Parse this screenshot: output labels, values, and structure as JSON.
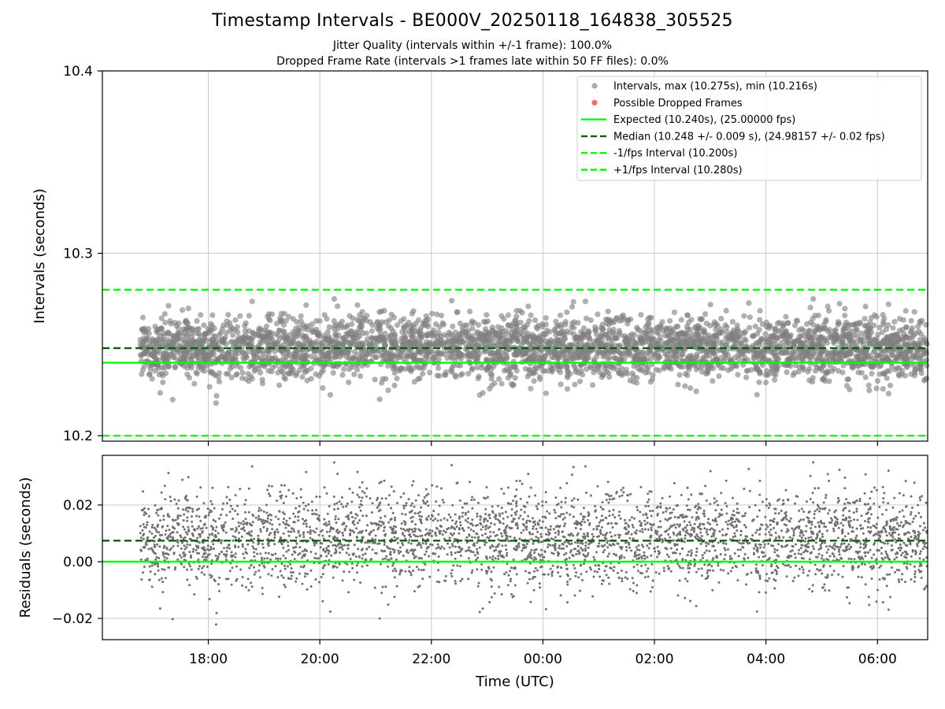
{
  "chart_data": {
    "type": "scatter",
    "title": "Timestamp Intervals - BE000V_20250118_164838_305525",
    "subtitle_line1": "Jitter Quality (intervals within +/-1 frame): 100.0%",
    "subtitle_line2": "Dropped Frame Rate (intervals >1 frames late within 50 FF files): 0.0%",
    "xlabel": "Time (UTC)",
    "x_range_hours": [
      16.1,
      30.9
    ],
    "data_x_range_hours": [
      16.78,
      30.9
    ],
    "x_ticks": [
      {
        "value": 18,
        "label": "18:00"
      },
      {
        "value": 20,
        "label": "20:00"
      },
      {
        "value": 22,
        "label": "22:00"
      },
      {
        "value": 24,
        "label": "00:00"
      },
      {
        "value": 26,
        "label": "02:00"
      },
      {
        "value": 28,
        "label": "04:00"
      },
      {
        "value": 30,
        "label": "06:00"
      }
    ],
    "grid": true,
    "legend_placement": "upper right",
    "top_panel": {
      "ylabel": "Intervals (seconds)",
      "ylim": [
        10.197,
        10.4
      ],
      "y_ticks": [
        {
          "value": 10.2,
          "label": "10.2"
        },
        {
          "value": 10.3,
          "label": "10.3"
        },
        {
          "value": 10.4,
          "label": "10.4"
        }
      ],
      "intervals": {
        "max": 10.275,
        "min": 10.216,
        "mean": 10.248,
        "std": 0.009
      },
      "lines": [
        {
          "name": "expected",
          "value": 10.24,
          "color": "#00ff00",
          "style": "solid"
        },
        {
          "name": "median",
          "value": 10.248,
          "color": "#006400",
          "style": "dashed"
        },
        {
          "name": "minus_1_fps",
          "value": 10.2,
          "color": "#00ff00",
          "style": "dashed"
        },
        {
          "name": "plus_1_fps",
          "value": 10.28,
          "color": "#00ff00",
          "style": "dashed"
        }
      ],
      "legend": [
        {
          "label": "Intervals, max (10.275s), min (10.216s)",
          "marker": "dot",
          "color": "#a0a0a0"
        },
        {
          "label": "Possible Dropped Frames",
          "marker": "dot",
          "color": "#ff6b6b"
        },
        {
          "label": "Expected (10.240s), (25.00000 fps)",
          "marker": "solid",
          "color": "#00ff00"
        },
        {
          "label": "Median (10.248 +/- 0.009 s), (24.98157 +/- 0.02 fps)",
          "marker": "dashed",
          "color": "#006400"
        },
        {
          "label": "-1/fps Interval (10.200s)",
          "marker": "dashed",
          "color": "#00ff00"
        },
        {
          "label": "+1/fps Interval (10.280s)",
          "marker": "dashed",
          "color": "#00ff00"
        }
      ]
    },
    "bottom_panel": {
      "ylabel": "Residuals (seconds)",
      "ylim": [
        -0.0275,
        0.0375
      ],
      "y_ticks": [
        {
          "value": -0.02,
          "label": "−0.02"
        },
        {
          "value": 0.0,
          "label": "0.00"
        },
        {
          "value": 0.02,
          "label": "0.02"
        }
      ],
      "residual_stats": {
        "max": 0.035,
        "min": -0.024,
        "mean": 0.008,
        "std": 0.009
      },
      "lines": [
        {
          "name": "zero",
          "value": 0.0,
          "color": "#00ff00",
          "style": "solid"
        },
        {
          "name": "median_residual",
          "value": 0.0074,
          "color": "#006400",
          "style": "dashed"
        }
      ]
    },
    "colors": {
      "points_top": "#808080",
      "points_bottom": "#707070",
      "grid": "#c8c8c8",
      "expected": "#00ff00",
      "median": "#006400"
    }
  }
}
